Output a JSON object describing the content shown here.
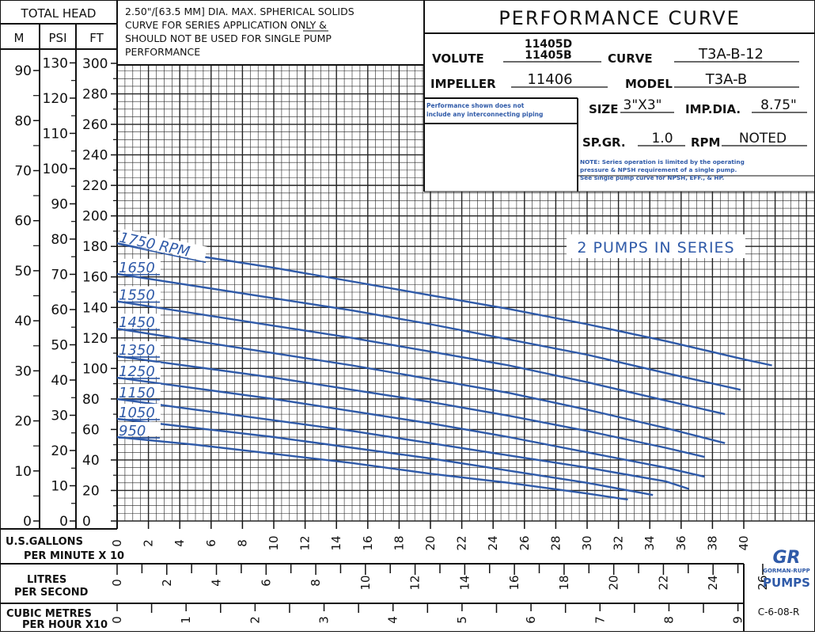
{
  "headers": {
    "total_head": "TOTAL HEAD",
    "m": "M",
    "psi": "PSI",
    "ft": "FT"
  },
  "note_top": [
    "2.50\"/[63.5 MM] DIA. MAX. SPHERICAL SOLIDS",
    "CURVE FOR SERIES APPLICATION ONLY &",
    "SHOULD NOT BE USED FOR SINGLE PUMP",
    "PERFORMANCE"
  ],
  "title": "PERFORMANCE CURVE",
  "info": {
    "volute_label": "VOLUTE",
    "volute_values": [
      "11405D",
      "11405B"
    ],
    "curve_label": "CURVE",
    "curve_value": "T3A-B-12",
    "impeller_label": "IMPELLER",
    "impeller_value": "11406",
    "model_label": "MODEL",
    "model_value": "T3A-B",
    "size_label": "SIZE",
    "size_value": "3\"X3\"",
    "impdia_label": "IMP.DIA.",
    "impdia_value": "8.75\"",
    "spgr_label": "SP.GR.",
    "spgr_value": "1.0",
    "rpm_label": "RPM",
    "rpm_value": "NOTED",
    "piping_note": [
      "Performance shown does not",
      "include any interconnecting piping"
    ],
    "series_note": [
      "NOTE: Series operation is limited by the operating",
      "pressure & NPSH requirement of a single pump.",
      "See single pump curve for NPSH, EFF., & HP."
    ]
  },
  "series_label": "2 PUMPS IN SERIES",
  "axis_left": {
    "m_ticks": [
      "0",
      "10",
      "20",
      "30",
      "40",
      "50",
      "60",
      "70",
      "80",
      "90"
    ],
    "psi_ticks": [
      "0",
      "10",
      "20",
      "30",
      "40",
      "50",
      "60",
      "70",
      "80",
      "90",
      "100",
      "110",
      "120",
      "130"
    ],
    "ft_ticks": [
      "0",
      "20",
      "40",
      "60",
      "80",
      "100",
      "120",
      "140",
      "160",
      "180",
      "200",
      "220",
      "240",
      "260",
      "280",
      "300"
    ]
  },
  "axis_bottom": {
    "gpm_label": [
      "U.S.GALLONS",
      "PER MINUTE X 10"
    ],
    "gpm_ticks": [
      "0",
      "2",
      "4",
      "6",
      "8",
      "10",
      "12",
      "14",
      "16",
      "18",
      "20",
      "22",
      "24",
      "26",
      "28",
      "30",
      "32",
      "34",
      "36",
      "38",
      "40"
    ],
    "lps_label": [
      "LITRES",
      "PER SECOND"
    ],
    "lps_ticks": [
      "0",
      "2",
      "4",
      "6",
      "8",
      "10",
      "12",
      "14",
      "16",
      "18",
      "20",
      "22",
      "24",
      "26"
    ],
    "cmh_label": [
      "CUBIC METRES",
      "PER HOUR X10"
    ],
    "cmh_ticks": [
      "0",
      "1",
      "2",
      "3",
      "4",
      "5",
      "6",
      "7",
      "8",
      "9"
    ]
  },
  "logo": {
    "mark": "GR",
    "line1": "GORMAN-RUPP",
    "line2": "PUMPS"
  },
  "drawing_number": "C-6-08-R",
  "colors": {
    "curve": "#2f5aa8",
    "grid": "#111111"
  },
  "chart_data": {
    "type": "line",
    "xlabel": "U.S.GALLONS PER MINUTE X 10",
    "ylabel": "TOTAL HEAD FT",
    "xlim": [
      0,
      40
    ],
    "ylim": [
      0,
      300
    ],
    "series": [
      {
        "name": "1750 RPM",
        "x": [
          0,
          5,
          10,
          15,
          20,
          25,
          30,
          35,
          40,
          41.8
        ],
        "y": [
          182,
          174,
          166,
          157,
          148,
          139,
          129,
          118,
          106,
          102
        ]
      },
      {
        "name": "1650",
        "x": [
          0,
          5,
          10,
          15,
          20,
          25,
          30,
          35,
          39.8
        ],
        "y": [
          162,
          154,
          146,
          138,
          129,
          119,
          109,
          97,
          86
        ]
      },
      {
        "name": "1550",
        "x": [
          0,
          5,
          10,
          15,
          20,
          25,
          30,
          35,
          38.8
        ],
        "y": [
          144,
          136,
          128,
          120,
          111,
          102,
          91,
          79,
          70
        ]
      },
      {
        "name": "1450",
        "x": [
          0,
          5,
          10,
          15,
          20,
          25,
          30,
          35,
          38.8
        ],
        "y": [
          126,
          118,
          110,
          102,
          93,
          84,
          73,
          61,
          51
        ]
      },
      {
        "name": "1350",
        "x": [
          0,
          5,
          10,
          15,
          20,
          25,
          30,
          35,
          37.5
        ],
        "y": [
          108,
          101,
          94,
          86,
          78,
          69,
          59,
          48,
          42
        ]
      },
      {
        "name": "1250",
        "x": [
          0,
          5,
          10,
          15,
          20,
          25,
          30,
          35,
          37.5
        ],
        "y": [
          94,
          87,
          80,
          72,
          64,
          55,
          45,
          35,
          29
        ]
      },
      {
        "name": "1150",
        "x": [
          0,
          5,
          10,
          15,
          20,
          25,
          30,
          35,
          36.5
        ],
        "y": [
          80,
          73,
          66,
          59,
          51,
          43,
          35,
          26,
          21
        ]
      },
      {
        "name": "1050",
        "x": [
          0,
          5,
          10,
          15,
          20,
          25,
          30,
          34.2
        ],
        "y": [
          67,
          61,
          55,
          48,
          41,
          33,
          25,
          17
        ]
      },
      {
        "name": "950",
        "x": [
          0,
          5,
          10,
          15,
          20,
          25,
          30,
          32.6
        ],
        "y": [
          55,
          50,
          44,
          38,
          31,
          25,
          18,
          14
        ]
      }
    ]
  }
}
